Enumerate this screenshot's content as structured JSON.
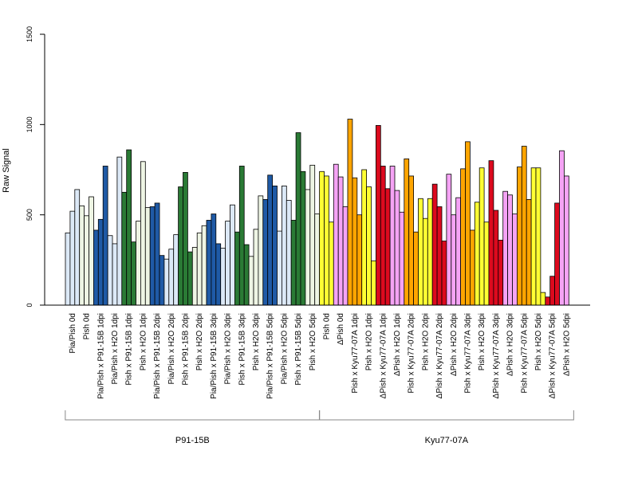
{
  "chart_data": {
    "type": "bar",
    "ylabel": "Raw Signal",
    "ylim": [
      0,
      1500
    ],
    "yticks": [
      "0",
      "500",
      "1000",
      "1500"
    ],
    "grid": false,
    "legend": "none",
    "groups": [
      {
        "label": "P91-15B",
        "first_category": 0,
        "last_category": 17
      },
      {
        "label": "Kyu77-07A",
        "first_category": 18,
        "last_category": 35
      }
    ],
    "categories": [
      "Pia/Pish 0d",
      "Pish 0d",
      "Pia/Pish x P91-15B 1dpi",
      "Pia/Pish x H2O 1dpi",
      "Pish x P91-15B 1dpi",
      "Pish x H2O 1dpi",
      "Pia/Pish x P91-15B 2dpi",
      "Pia/Pish x H2O 2dpi",
      "Pish x P91-15B 2dpi",
      "Pish x H2O 2dpi",
      "Pia/Pish x P91-15B 3dpi",
      "Pia/Pish x H2O 3dpi",
      "Pish x P91-15B 3dpi",
      "Pish x H2O 3dpi",
      "Pia/Pish x P91-15B 5dpi",
      "Pia/Pish x H2O 5dpi",
      "Pish x P91-15B 5dpi",
      "Pish x H2O 5dpi",
      "Pish 0d",
      "ΔPish 0d",
      "Pish x Kyu77-07A 1dpi",
      "Pish x H2O 1dpi",
      "ΔPish x Kyu77-07A 1dpi",
      "ΔPish x H2O 1dpi",
      "Pish x Kyu77-07A 2dpi",
      "Pish x H2O 2dpi",
      "ΔPish x Kyu77-07A 2dpi",
      "ΔPish x H2O 2dpi",
      "Pish x Kyu77-07A 3dpi",
      "Pish x H2O 3dpi",
      "ΔPish x Kyu77-07A 3dpi",
      "ΔPish x H2O 3dpi",
      "Pish x Kyu77-07A 5dpi",
      "Pish x H2O 5dpi",
      "ΔPish x Kyu77-07A 5dpi",
      "ΔPish x H2O 5dpi"
    ],
    "colors": [
      "#dce9f7",
      "#eef5e4",
      "#1f5aa6",
      "#dce9f7",
      "#2a7a35",
      "#eef5e4",
      "#1f5aa6",
      "#dce9f7",
      "#2a7a35",
      "#eef5e4",
      "#1f5aa6",
      "#dce9f7",
      "#2a7a35",
      "#eef5e4",
      "#1f5aa6",
      "#dce9f7",
      "#2a7a35",
      "#eef5e4",
      "#ffff33",
      "#f5a3f5",
      "#ffa500",
      "#ffff33",
      "#dc0a1e",
      "#f5a3f5",
      "#ffa500",
      "#ffff33",
      "#dc0a1e",
      "#f5a3f5",
      "#ffa500",
      "#ffff33",
      "#dc0a1e",
      "#f5a3f5",
      "#ffa500",
      "#ffff33",
      "#dc0a1e",
      "#f5a3f5"
    ],
    "values": [
      [
        400,
        520,
        640
      ],
      [
        550,
        495,
        600
      ],
      [
        415,
        475,
        770
      ],
      [
        385,
        340,
        820
      ],
      [
        625,
        860,
        350
      ],
      [
        465,
        795,
        540
      ],
      [
        545,
        565,
        275
      ],
      [
        255,
        310,
        390
      ],
      [
        655,
        735,
        295
      ],
      [
        320,
        400,
        440
      ],
      [
        470,
        505,
        340
      ],
      [
        315,
        465,
        555
      ],
      [
        405,
        770,
        335
      ],
      [
        270,
        420,
        605
      ],
      [
        585,
        720,
        660
      ],
      [
        410,
        660,
        580
      ],
      [
        470,
        955,
        740
      ],
      [
        640,
        775,
        505
      ],
      [
        740,
        715,
        460
      ],
      [
        780,
        710,
        545
      ],
      [
        1030,
        705,
        500
      ],
      [
        750,
        655,
        245
      ],
      [
        995,
        770,
        645
      ],
      [
        770,
        635,
        515
      ],
      [
        810,
        715,
        405
      ],
      [
        590,
        480,
        590
      ],
      [
        670,
        545,
        355
      ],
      [
        725,
        500,
        595
      ],
      [
        755,
        905,
        415
      ],
      [
        570,
        760,
        460
      ],
      [
        800,
        525,
        360
      ],
      [
        630,
        610,
        505
      ],
      [
        765,
        880,
        585
      ],
      [
        760,
        760,
        70
      ],
      [
        45,
        160,
        565
      ],
      [
        855,
        715,
        0
      ]
    ],
    "bars_per_category": [
      3,
      3,
      3,
      3,
      3,
      3,
      3,
      3,
      3,
      3,
      3,
      3,
      3,
      3,
      3,
      3,
      3,
      3,
      3,
      3,
      3,
      3,
      3,
      3,
      3,
      3,
      3,
      3,
      3,
      3,
      3,
      3,
      3,
      3,
      3,
      3
    ]
  }
}
